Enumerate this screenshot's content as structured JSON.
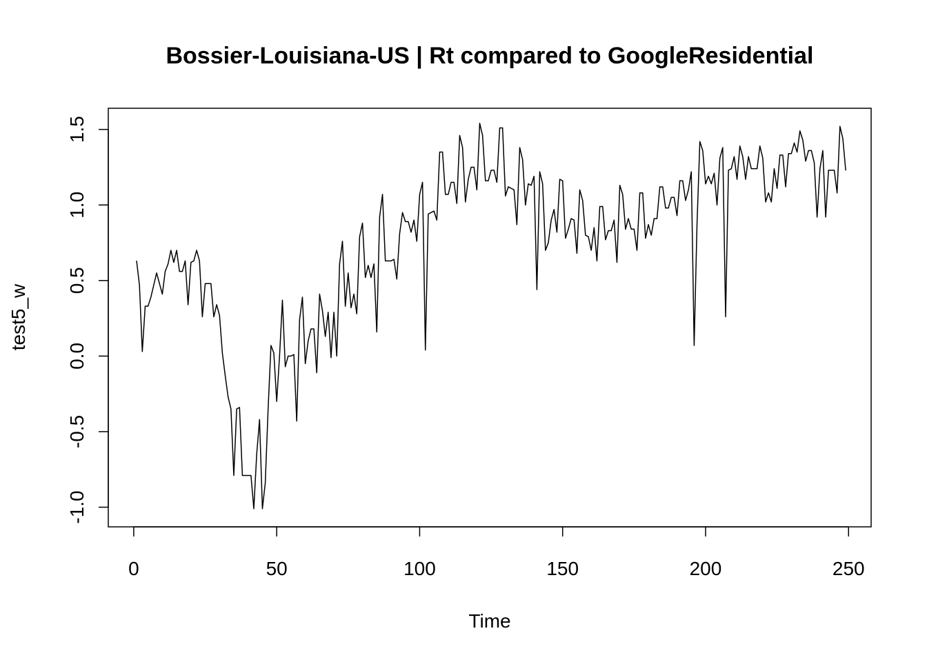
{
  "chart_data": {
    "type": "line",
    "title": "Bossier-Louisiana-US | Rt compared to GoogleResidential",
    "xlabel": "Time",
    "ylabel": "test5_w",
    "xlim": [
      -8.9,
      257.9
    ],
    "ylim": [
      -1.13,
      1.64
    ],
    "xticks": [
      0,
      50,
      100,
      150,
      200,
      250
    ],
    "yticks": [
      -1.0,
      -0.5,
      0.0,
      0.5,
      1.0,
      1.5
    ],
    "xtick_labels": [
      "0",
      "50",
      "100",
      "150",
      "200",
      "250"
    ],
    "ytick_labels": [
      "-1.0",
      "-0.5",
      "0.0",
      "0.5",
      "1.0",
      "1.5"
    ],
    "grid": false,
    "legend": "none",
    "line_color": "#000000",
    "x_start": 1,
    "y": [
      0.63,
      0.47,
      0.03,
      0.33,
      0.33,
      0.39,
      0.47,
      0.55,
      0.48,
      0.41,
      0.56,
      0.61,
      0.7,
      0.62,
      0.7,
      0.56,
      0.56,
      0.63,
      0.34,
      0.62,
      0.63,
      0.7,
      0.63,
      0.26,
      0.48,
      0.48,
      0.48,
      0.26,
      0.34,
      0.27,
      0.02,
      -0.13,
      -0.27,
      -0.35,
      -0.79,
      -0.35,
      -0.34,
      -0.79,
      -0.79,
      -0.79,
      -0.79,
      -1.01,
      -0.65,
      -0.42,
      -1.01,
      -0.84,
      -0.35,
      0.07,
      0.02,
      -0.3,
      0.0,
      0.37,
      -0.07,
      0.0,
      0.0,
      0.01,
      -0.43,
      0.24,
      0.39,
      -0.05,
      0.1,
      0.18,
      0.18,
      -0.11,
      0.41,
      0.3,
      0.13,
      0.29,
      -0.01,
      0.29,
      0.0,
      0.61,
      0.76,
      0.33,
      0.55,
      0.32,
      0.41,
      0.28,
      0.79,
      0.88,
      0.52,
      0.6,
      0.52,
      0.61,
      0.16,
      0.92,
      1.07,
      0.63,
      0.63,
      0.63,
      0.64,
      0.51,
      0.81,
      0.95,
      0.89,
      0.89,
      0.82,
      0.9,
      0.76,
      1.07,
      1.15,
      0.04,
      0.94,
      0.95,
      0.96,
      0.9,
      1.35,
      1.35,
      1.07,
      1.07,
      1.15,
      1.15,
      1.01,
      1.46,
      1.38,
      1.02,
      1.17,
      1.25,
      1.25,
      1.1,
      1.54,
      1.46,
      1.16,
      1.16,
      1.23,
      1.23,
      1.15,
      1.51,
      1.51,
      1.06,
      1.12,
      1.11,
      1.1,
      0.87,
      1.38,
      1.3,
      1.0,
      1.14,
      1.13,
      1.19,
      0.44,
      1.22,
      1.14,
      0.7,
      0.75,
      0.9,
      0.97,
      0.82,
      1.17,
      1.16,
      0.78,
      0.84,
      0.91,
      0.9,
      0.68,
      1.1,
      1.03,
      0.8,
      0.79,
      0.7,
      0.85,
      0.63,
      0.99,
      0.99,
      0.77,
      0.83,
      0.83,
      0.9,
      0.62,
      1.13,
      1.07,
      0.84,
      0.91,
      0.84,
      0.84,
      0.7,
      1.08,
      1.08,
      0.78,
      0.87,
      0.8,
      0.91,
      0.91,
      1.12,
      1.12,
      0.98,
      0.98,
      1.05,
      1.05,
      0.93,
      1.16,
      1.16,
      1.03,
      1.1,
      1.22,
      0.07,
      0.87,
      1.42,
      1.36,
      1.14,
      1.19,
      1.14,
      1.21,
      1.0,
      1.31,
      1.38,
      0.26,
      1.23,
      1.24,
      1.32,
      1.17,
      1.39,
      1.32,
      1.17,
      1.32,
      1.24,
      1.24,
      1.24,
      1.39,
      1.31,
      1.02,
      1.08,
      1.02,
      1.24,
      1.11,
      1.33,
      1.33,
      1.12,
      1.34,
      1.34,
      1.41,
      1.35,
      1.49,
      1.43,
      1.29,
      1.36,
      1.36,
      1.28,
      0.92,
      1.24,
      1.36,
      0.92,
      1.23,
      1.23,
      1.23,
      1.08,
      1.52,
      1.44,
      1.23
    ]
  }
}
